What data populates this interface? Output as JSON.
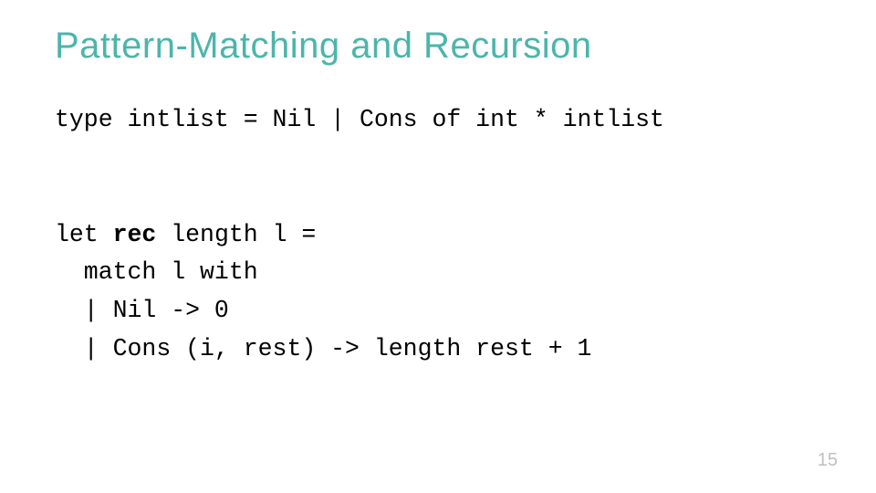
{
  "title": {
    "text": "Pattern-Matching and Recursion",
    "color": "#4cb5ab",
    "fontsize": 40
  },
  "code": {
    "line1": "type intlist = Nil | Cons of int * intlist",
    "line2": "",
    "line3a": "let ",
    "line3b": "rec",
    "line3c": " length l =",
    "line4": "  match l with",
    "line5": "  | Nil -> 0",
    "line6": "  | Cons (i, rest) -> length rest + 1",
    "color": "#000000",
    "fontfamily": "Courier New",
    "fontsize": 26.5
  },
  "page": {
    "number": "15",
    "color": "#bfbfbf",
    "fontsize": 20
  },
  "background_color": "#ffffff"
}
